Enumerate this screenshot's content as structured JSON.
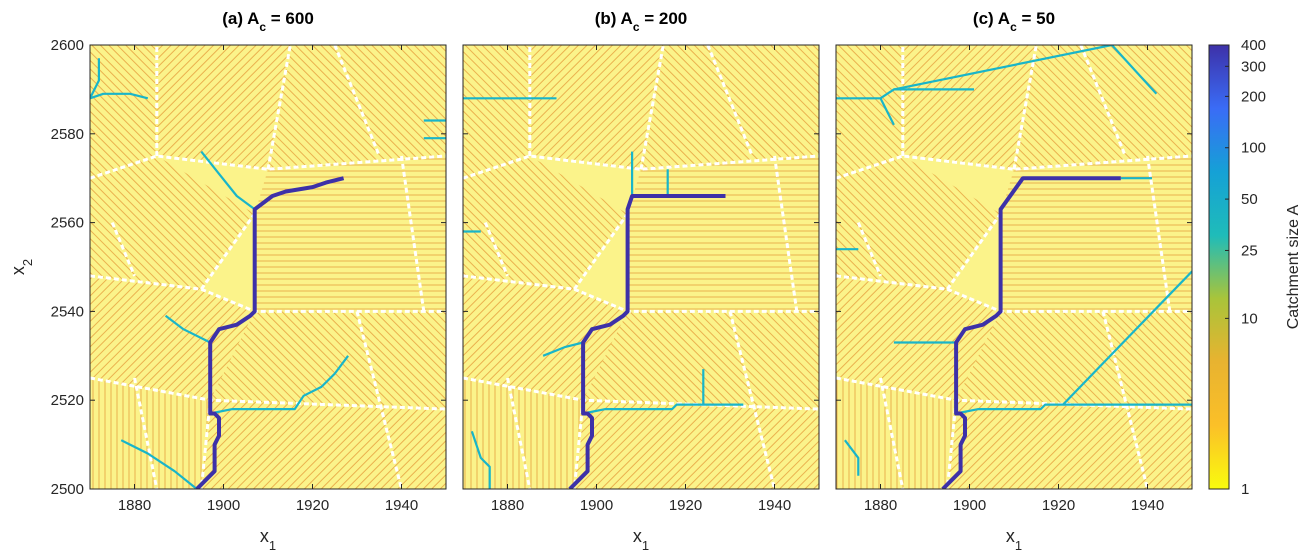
{
  "chart_data": {
    "type": "heatmap",
    "colorbar": {
      "label": "Catchment size A",
      "scale": "log",
      "range": [
        1,
        400
      ],
      "ticks": [
        "1",
        "10",
        "25",
        "50",
        "100",
        "200",
        "300",
        "400"
      ],
      "colors": [
        "#f9fb0e",
        "#fbc028",
        "#e8b330",
        "#a9c43a",
        "#1fbcb9",
        "#15a1d6",
        "#3a6cf6",
        "#3d31a8"
      ]
    },
    "shared_axes": {
      "xlabel": "x",
      "xlabel_sub": "1",
      "ylabel": "x",
      "ylabel_sub": "2",
      "xlim": [
        1870,
        1950
      ],
      "ylim": [
        2500,
        2600
      ],
      "xticks": [
        "1880",
        "1900",
        "1920",
        "1940"
      ],
      "yticks": [
        "2500",
        "2520",
        "2540",
        "2560",
        "2580",
        "2600"
      ]
    },
    "panels": [
      {
        "title_prefix": "(a) A",
        "title_sub": "c",
        "title_suffix": " = 600",
        "main_channel": [
          [
            1894,
            2500
          ],
          [
            1898,
            2504
          ],
          [
            1898,
            2510
          ],
          [
            1899,
            2512
          ],
          [
            1899,
            2516
          ],
          [
            1898,
            2517
          ],
          [
            1897,
            2517
          ],
          [
            1897,
            2533
          ],
          [
            1899,
            2536
          ],
          [
            1903,
            2537
          ],
          [
            1906,
            2539
          ],
          [
            1907,
            2540
          ],
          [
            1907,
            2563
          ],
          [
            1911,
            2566
          ],
          [
            1914,
            2567
          ],
          [
            1920,
            2568
          ],
          [
            1923,
            2569
          ],
          [
            1927,
            2570
          ]
        ],
        "branches": [
          [
            [
              1897,
              2517
            ],
            [
              1902,
              2518
            ],
            [
              1916,
              2518
            ],
            [
              1918,
              2521
            ],
            [
              1922,
              2523
            ],
            [
              1925,
              2526
            ],
            [
              1928,
              2530
            ]
          ],
          [
            [
              1870,
              2588
            ],
            [
              1873,
              2589
            ],
            [
              1879,
              2589
            ],
            [
              1883,
              2588
            ]
          ],
          [
            [
              1870,
              2588
            ],
            [
              1872,
              2592
            ],
            [
              1872,
              2597
            ]
          ],
          [
            [
              1897,
              2533
            ],
            [
              1891,
              2536
            ],
            [
              1887,
              2539
            ]
          ],
          [
            [
              1907,
              2563
            ],
            [
              1903,
              2566
            ],
            [
              1899,
              2571
            ],
            [
              1895,
              2576
            ]
          ],
          [
            [
              1894,
              2500
            ],
            [
              1889,
              2504
            ],
            [
              1883,
              2508
            ],
            [
              1877,
              2511
            ]
          ],
          [
            [
              1945,
              2583
            ],
            [
              1950,
              2583
            ]
          ],
          [
            [
              1945,
              2579
            ],
            [
              1950,
              2579
            ]
          ]
        ]
      },
      {
        "title_prefix": "(b) A",
        "title_sub": "c",
        "title_suffix": " = 200",
        "main_channel": [
          [
            1894,
            2500
          ],
          [
            1898,
            2504
          ],
          [
            1898,
            2510
          ],
          [
            1899,
            2512
          ],
          [
            1899,
            2516
          ],
          [
            1898,
            2517
          ],
          [
            1897,
            2517
          ],
          [
            1897,
            2533
          ],
          [
            1899,
            2536
          ],
          [
            1903,
            2537
          ],
          [
            1906,
            2539
          ],
          [
            1907,
            2540
          ],
          [
            1907,
            2563
          ],
          [
            1908,
            2566
          ],
          [
            1910,
            2566
          ],
          [
            1912,
            2566
          ],
          [
            1929,
            2566
          ]
        ],
        "branches": [
          [
            [
              1897,
              2517
            ],
            [
              1902,
              2518
            ],
            [
              1917,
              2518
            ],
            [
              1918,
              2519
            ],
            [
              1933,
              2519
            ]
          ],
          [
            [
              1870,
              2588
            ],
            [
              1891,
              2588
            ]
          ],
          [
            [
              1908,
              2566
            ],
            [
              1908,
              2576
            ]
          ],
          [
            [
              1897,
              2533
            ],
            [
              1893,
              2532
            ],
            [
              1888,
              2530
            ]
          ],
          [
            [
              1870,
              2558
            ],
            [
              1874,
              2558
            ]
          ],
          [
            [
              1876,
              2500
            ],
            [
              1876,
              2505
            ],
            [
              1874,
              2507
            ],
            [
              1872,
              2513
            ]
          ],
          [
            [
              1924,
              2519
            ],
            [
              1924,
              2527
            ]
          ],
          [
            [
              1916,
              2566
            ],
            [
              1916,
              2572
            ]
          ]
        ]
      },
      {
        "title_prefix": "(c) A",
        "title_sub": "c",
        "title_suffix": " = 50",
        "main_channel": [
          [
            1894,
            2500
          ],
          [
            1898,
            2504
          ],
          [
            1898,
            2510
          ],
          [
            1899,
            2512
          ],
          [
            1899,
            2516
          ],
          [
            1898,
            2517
          ],
          [
            1897,
            2517
          ],
          [
            1897,
            2533
          ],
          [
            1899,
            2536
          ],
          [
            1903,
            2537
          ],
          [
            1906,
            2539
          ],
          [
            1907,
            2540
          ],
          [
            1907,
            2563
          ],
          [
            1912,
            2570
          ],
          [
            1934,
            2570
          ]
        ],
        "branches": [
          [
            [
              1897,
              2517
            ],
            [
              1902,
              2518
            ],
            [
              1916,
              2518
            ],
            [
              1917,
              2519
            ],
            [
              1950,
              2519
            ]
          ],
          [
            [
              1921,
              2519
            ],
            [
              1950,
              2549
            ]
          ],
          [
            [
              1870,
              2588
            ],
            [
              1880,
              2588
            ],
            [
              1883,
              2590
            ],
            [
              1901,
              2590
            ]
          ],
          [
            [
              1880,
              2588
            ],
            [
              1883,
              2582
            ]
          ],
          [
            [
              1883,
              2590
            ],
            [
              1932,
              2600
            ]
          ],
          [
            [
              1932,
              2600
            ],
            [
              1942,
              2589
            ]
          ],
          [
            [
              1897,
              2533
            ],
            [
              1889,
              2533
            ],
            [
              1883,
              2533
            ]
          ],
          [
            [
              1870,
              2554
            ],
            [
              1875,
              2554
            ]
          ],
          [
            [
              1875,
              2503
            ],
            [
              1875,
              2507
            ],
            [
              1872,
              2511
            ]
          ],
          [
            [
              1934,
              2570
            ],
            [
              1941,
              2570
            ]
          ]
        ]
      }
    ]
  }
}
